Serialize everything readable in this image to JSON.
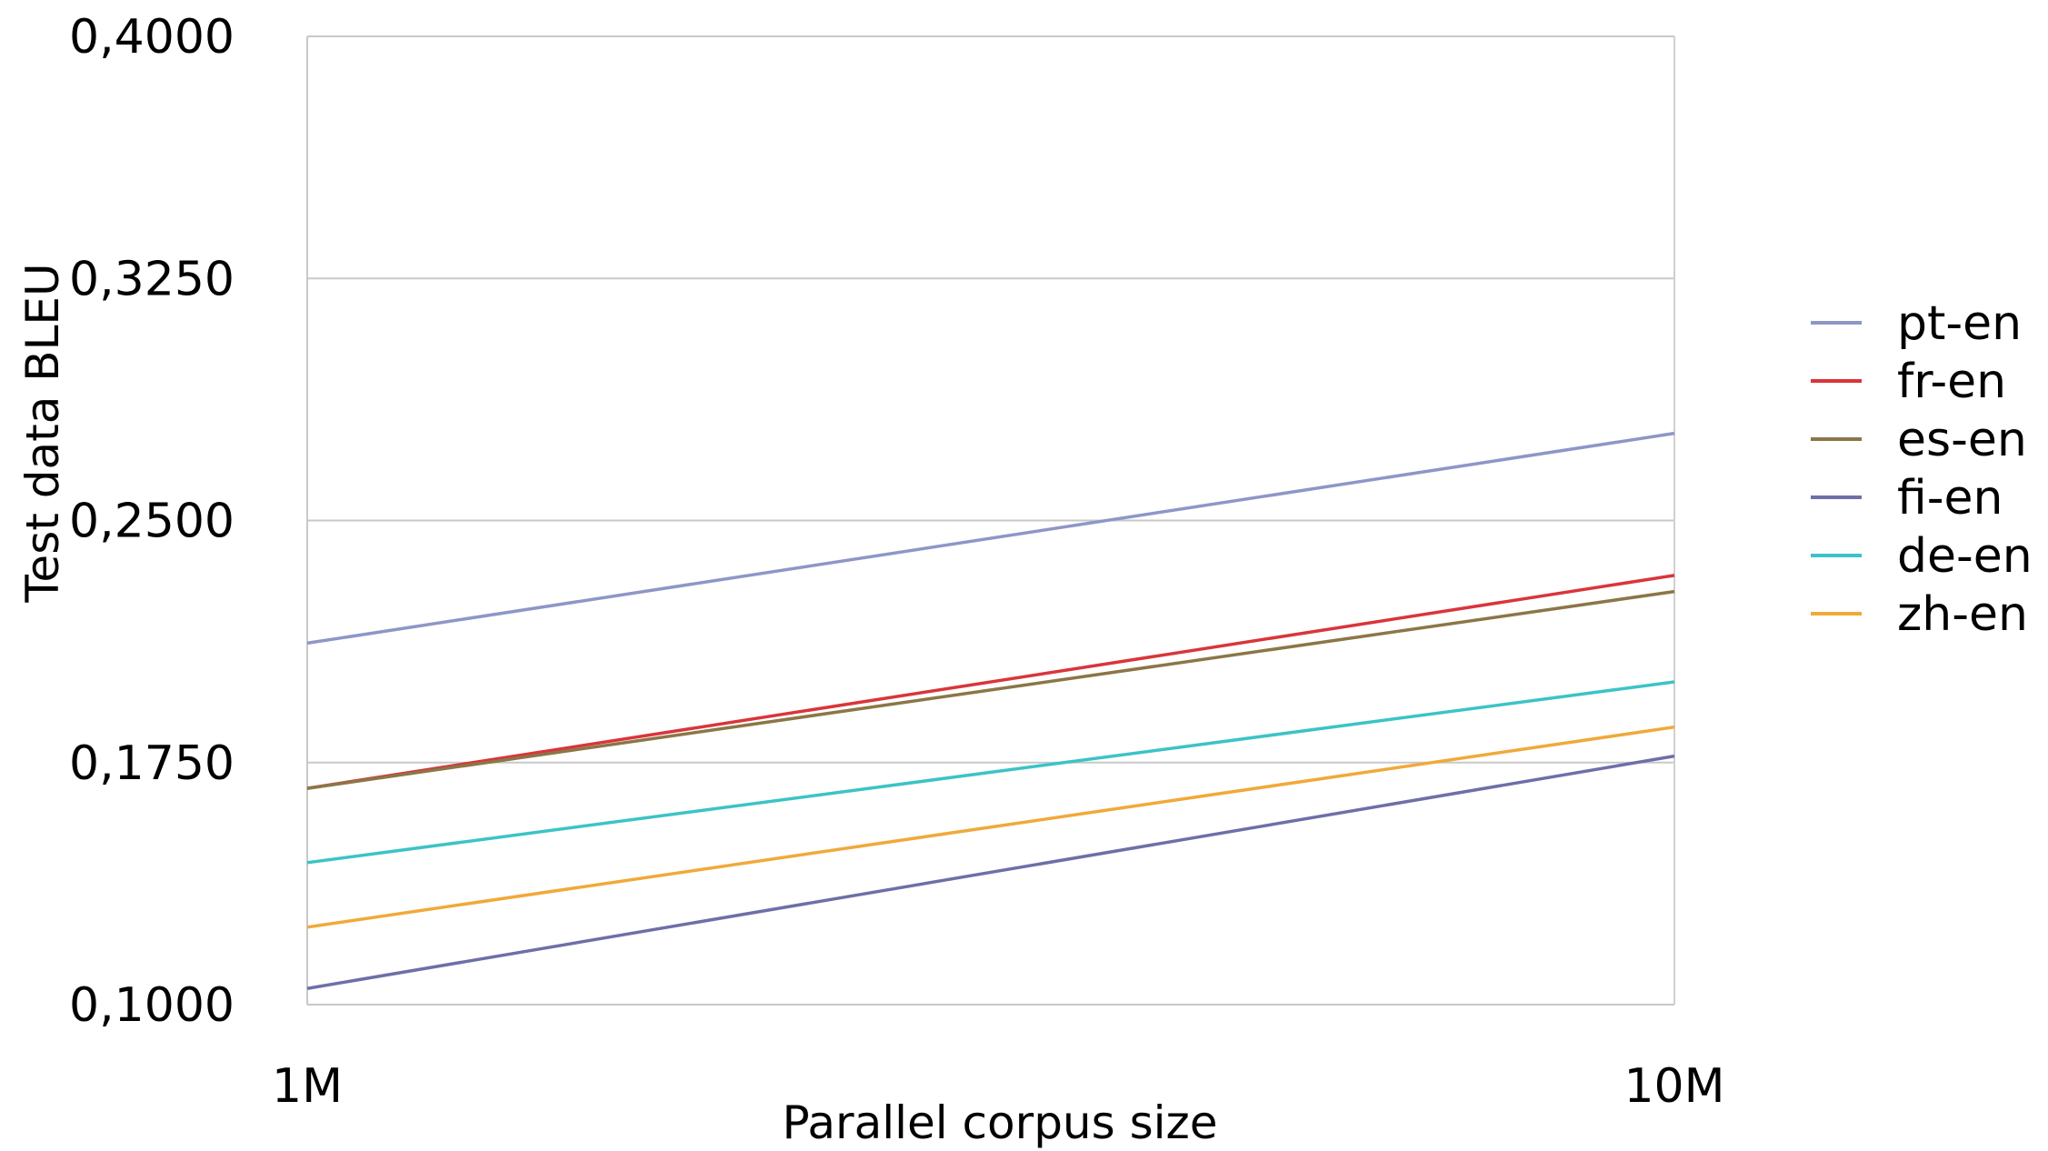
{
  "chart_data": {
    "type": "line",
    "xlabel": "Parallel corpus size",
    "ylabel": "Test data BLEU",
    "x_scale": "log",
    "x": [
      "1M",
      "10M"
    ],
    "xlim": [
      "1M",
      "10M"
    ],
    "ylim": [
      0.1,
      0.4
    ],
    "yticks": [
      "0,4000",
      "0,3250",
      "0,2500",
      "0,1750",
      "0,1000"
    ],
    "ytick_values": [
      0.4,
      0.325,
      0.25,
      0.175,
      0.1
    ],
    "grid": "horizontal",
    "legend_position": "right",
    "series": [
      {
        "name": "pt-en",
        "color": "#8e96c8",
        "values": [
          0.212,
          0.277
        ]
      },
      {
        "name": "fr-en",
        "color": "#d9353a",
        "values": [
          0.167,
          0.233
        ]
      },
      {
        "name": "es-en",
        "color": "#8b7647",
        "values": [
          0.167,
          0.228
        ]
      },
      {
        "name": "fi-en",
        "color": "#6e6fa8",
        "values": [
          0.105,
          0.177
        ]
      },
      {
        "name": "de-en",
        "color": "#3cc3c6",
        "values": [
          0.144,
          0.2
        ]
      },
      {
        "name": "zh-en",
        "color": "#f0a93a",
        "values": [
          0.124,
          0.186
        ]
      }
    ]
  }
}
